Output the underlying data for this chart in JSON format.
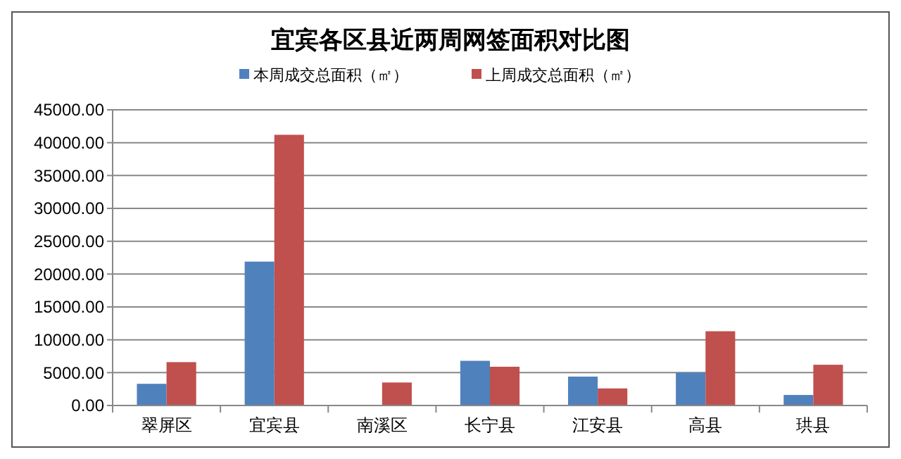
{
  "chart_data": {
    "type": "bar",
    "title": "宜宾各区县近两周网签面积对比图",
    "categories": [
      "翠屏区",
      "宜宾县",
      "南溪区",
      "长宁县",
      "江安县",
      "高县",
      "珙县"
    ],
    "series": [
      {
        "name": "本周成交总面积（㎡）",
        "color": "#4f81bd",
        "values": [
          3300,
          21900,
          0,
          6800,
          4400,
          5000,
          1600
        ]
      },
      {
        "name": "上周成交总面积（㎡）",
        "color": "#c0504d",
        "values": [
          6600,
          41200,
          3500,
          5900,
          2600,
          11300,
          6200
        ]
      }
    ],
    "ylim": [
      0,
      45000
    ],
    "yticks": [
      {
        "value": 0,
        "label": "0.00"
      },
      {
        "value": 5000,
        "label": "5000.00"
      },
      {
        "value": 10000,
        "label": "10000.00"
      },
      {
        "value": 15000,
        "label": "15000.00"
      },
      {
        "value": 20000,
        "label": "20000.00"
      },
      {
        "value": 25000,
        "label": "25000.00"
      },
      {
        "value": 30000,
        "label": "30000.00"
      },
      {
        "value": 35000,
        "label": "35000.00"
      },
      {
        "value": 40000,
        "label": "40000.00"
      },
      {
        "value": 45000,
        "label": "45000.00"
      }
    ],
    "grid": "y",
    "legend": "top"
  }
}
